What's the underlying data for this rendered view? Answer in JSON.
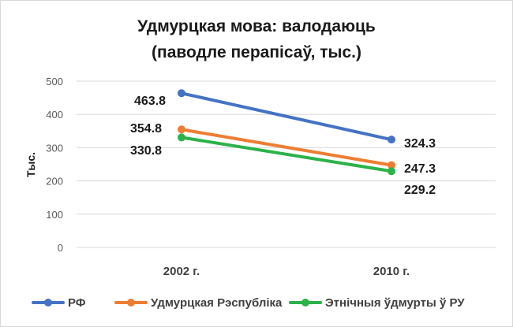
{
  "chart_data": {
    "type": "line",
    "title": [
      "Удмурцкая мова: валодаюць",
      "(паводле перапісаў, тыс.)"
    ],
    "xlabel": "",
    "ylabel": "Тыс.",
    "categories": [
      "2002 г.",
      "2010 г."
    ],
    "ylim": [
      0,
      500
    ],
    "yticks": [
      0,
      100,
      200,
      300,
      400,
      500
    ],
    "grid": true,
    "legend_position": "bottom",
    "series": [
      {
        "name": "РФ",
        "color": "#4472c4",
        "values": [
          463.8,
          324.3
        ],
        "labels": [
          "463.8",
          "324.3"
        ]
      },
      {
        "name": "Удмурцкая Рэспубліка",
        "color": "#ed7d31",
        "values": [
          354.8,
          247.3
        ],
        "labels": [
          "354.8",
          "247.3"
        ]
      },
      {
        "name": "Этнічныя ўдмурты ў РУ",
        "color": "#2cb24a",
        "values": [
          330.8,
          229.2
        ],
        "labels": [
          "330.8",
          "229.2"
        ]
      }
    ]
  }
}
